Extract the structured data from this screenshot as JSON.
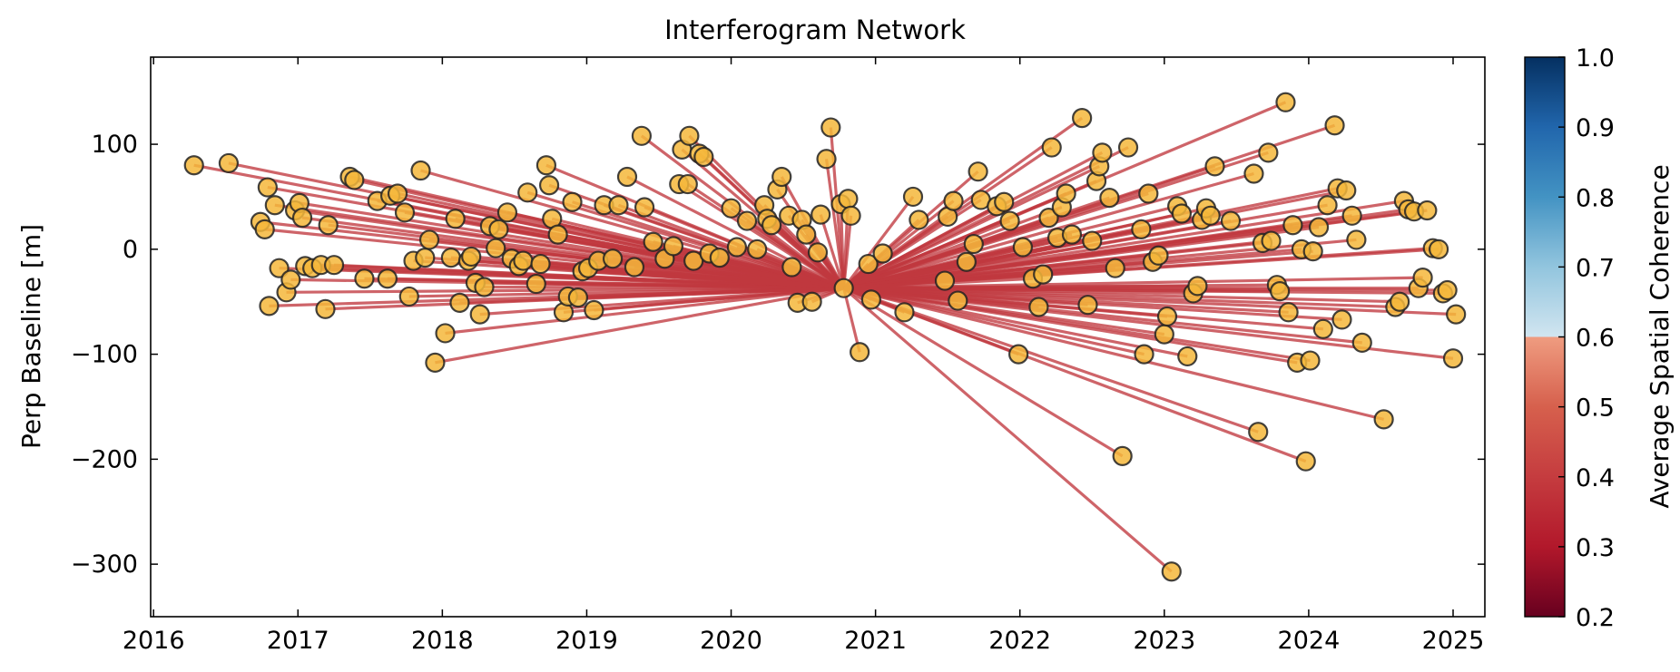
{
  "chart_data": {
    "type": "scatter",
    "title": "Interferogram Network",
    "xlabel": "",
    "ylabel": "Perp Baseline [m]",
    "xlim": [
      2015.98,
      2025.22
    ],
    "ylim": [
      -350,
      183
    ],
    "x_ticks": [
      "2016",
      "2017",
      "2018",
      "2019",
      "2020",
      "2021",
      "2022",
      "2023",
      "2024",
      "2025"
    ],
    "y_ticks": [
      "100",
      "0",
      "−100",
      "−200",
      "−300"
    ],
    "y_tick_values": [
      100,
      0,
      -100,
      -200,
      -300
    ],
    "reference": {
      "date": 2020.78,
      "baseline": -37
    },
    "edges": "each acquisition connected to the reference acquisition",
    "marker_color": "#f5b73b",
    "line_color": "#c0393f",
    "grid": false,
    "colorbar": {
      "label": "Average Spatial Coherence",
      "min": 0.2,
      "max": 1.0,
      "ticks": [
        "0.2",
        "0.3",
        "0.4",
        "0.5",
        "0.6",
        "0.7",
        "0.8",
        "0.9",
        "1.0"
      ],
      "colormap": "RdBu",
      "threshold": 0.7
    },
    "points": [
      {
        "x": 2016.28,
        "y": 80
      },
      {
        "x": 2016.52,
        "y": 82
      },
      {
        "x": 2016.74,
        "y": 26
      },
      {
        "x": 2016.77,
        "y": 19
      },
      {
        "x": 2016.79,
        "y": 59
      },
      {
        "x": 2016.8,
        "y": -54
      },
      {
        "x": 2016.84,
        "y": 42
      },
      {
        "x": 2016.87,
        "y": -18
      },
      {
        "x": 2016.92,
        "y": -41
      },
      {
        "x": 2016.95,
        "y": -29
      },
      {
        "x": 2016.98,
        "y": 37
      },
      {
        "x": 2017.01,
        "y": 44
      },
      {
        "x": 2017.03,
        "y": 30
      },
      {
        "x": 2017.05,
        "y": -16
      },
      {
        "x": 2017.1,
        "y": -18
      },
      {
        "x": 2017.16,
        "y": -15
      },
      {
        "x": 2017.19,
        "y": -57
      },
      {
        "x": 2017.21,
        "y": 23
      },
      {
        "x": 2017.25,
        "y": -15
      },
      {
        "x": 2017.36,
        "y": 69
      },
      {
        "x": 2017.39,
        "y": 66
      },
      {
        "x": 2017.46,
        "y": -28
      },
      {
        "x": 2017.55,
        "y": 46
      },
      {
        "x": 2017.62,
        "y": -28
      },
      {
        "x": 2017.64,
        "y": 51
      },
      {
        "x": 2017.69,
        "y": 53
      },
      {
        "x": 2017.74,
        "y": 35
      },
      {
        "x": 2017.77,
        "y": -45
      },
      {
        "x": 2017.8,
        "y": -11
      },
      {
        "x": 2017.85,
        "y": 75
      },
      {
        "x": 2017.88,
        "y": -8
      },
      {
        "x": 2017.91,
        "y": 9
      },
      {
        "x": 2017.95,
        "y": -108
      },
      {
        "x": 2018.02,
        "y": -80
      },
      {
        "x": 2018.06,
        "y": -8
      },
      {
        "x": 2018.09,
        "y": 29
      },
      {
        "x": 2018.12,
        "y": -51
      },
      {
        "x": 2018.18,
        "y": -11
      },
      {
        "x": 2018.2,
        "y": -7
      },
      {
        "x": 2018.23,
        "y": -32
      },
      {
        "x": 2018.26,
        "y": -62
      },
      {
        "x": 2018.29,
        "y": -36
      },
      {
        "x": 2018.33,
        "y": 22
      },
      {
        "x": 2018.37,
        "y": 1
      },
      {
        "x": 2018.39,
        "y": 19
      },
      {
        "x": 2018.45,
        "y": 35
      },
      {
        "x": 2018.48,
        "y": -9
      },
      {
        "x": 2018.53,
        "y": -16
      },
      {
        "x": 2018.56,
        "y": -11
      },
      {
        "x": 2018.59,
        "y": 54
      },
      {
        "x": 2018.65,
        "y": -33
      },
      {
        "x": 2018.68,
        "y": -14
      },
      {
        "x": 2018.72,
        "y": 80
      },
      {
        "x": 2018.74,
        "y": 61
      },
      {
        "x": 2018.76,
        "y": 29
      },
      {
        "x": 2018.8,
        "y": 14
      },
      {
        "x": 2018.84,
        "y": -60
      },
      {
        "x": 2018.87,
        "y": -45
      },
      {
        "x": 2018.9,
        "y": 45
      },
      {
        "x": 2018.94,
        "y": -46
      },
      {
        "x": 2018.97,
        "y": -21
      },
      {
        "x": 2019.01,
        "y": -18
      },
      {
        "x": 2019.05,
        "y": -58
      },
      {
        "x": 2019.08,
        "y": -11
      },
      {
        "x": 2019.12,
        "y": 42
      },
      {
        "x": 2019.18,
        "y": -9
      },
      {
        "x": 2019.22,
        "y": 42
      },
      {
        "x": 2019.28,
        "y": 69
      },
      {
        "x": 2019.33,
        "y": -17
      },
      {
        "x": 2019.38,
        "y": 108
      },
      {
        "x": 2019.4,
        "y": 40
      },
      {
        "x": 2019.46,
        "y": 7
      },
      {
        "x": 2019.54,
        "y": -9
      },
      {
        "x": 2019.6,
        "y": 3
      },
      {
        "x": 2019.64,
        "y": 62
      },
      {
        "x": 2019.66,
        "y": 95
      },
      {
        "x": 2019.7,
        "y": 62
      },
      {
        "x": 2019.71,
        "y": 108
      },
      {
        "x": 2019.74,
        "y": -11
      },
      {
        "x": 2019.78,
        "y": 91
      },
      {
        "x": 2019.81,
        "y": 88
      },
      {
        "x": 2019.85,
        "y": -4
      },
      {
        "x": 2019.92,
        "y": -8
      },
      {
        "x": 2020.0,
        "y": 39
      },
      {
        "x": 2020.04,
        "y": 2
      },
      {
        "x": 2020.11,
        "y": 27
      },
      {
        "x": 2020.18,
        "y": 0
      },
      {
        "x": 2020.23,
        "y": 42
      },
      {
        "x": 2020.25,
        "y": 29
      },
      {
        "x": 2020.28,
        "y": 23
      },
      {
        "x": 2020.32,
        "y": 57
      },
      {
        "x": 2020.35,
        "y": 69
      },
      {
        "x": 2020.4,
        "y": 32
      },
      {
        "x": 2020.42,
        "y": -17
      },
      {
        "x": 2020.46,
        "y": -51
      },
      {
        "x": 2020.49,
        "y": 28
      },
      {
        "x": 2020.52,
        "y": 14
      },
      {
        "x": 2020.56,
        "y": -50
      },
      {
        "x": 2020.6,
        "y": -3
      },
      {
        "x": 2020.62,
        "y": 33
      },
      {
        "x": 2020.66,
        "y": 86
      },
      {
        "x": 2020.69,
        "y": 116
      },
      {
        "x": 2020.76,
        "y": 43
      },
      {
        "x": 2020.78,
        "y": -37
      },
      {
        "x": 2020.81,
        "y": 48
      },
      {
        "x": 2020.83,
        "y": 32
      },
      {
        "x": 2020.89,
        "y": -98
      },
      {
        "x": 2020.95,
        "y": -14
      },
      {
        "x": 2020.97,
        "y": -48
      },
      {
        "x": 2021.05,
        "y": -4
      },
      {
        "x": 2021.2,
        "y": -60
      },
      {
        "x": 2021.26,
        "y": 50
      },
      {
        "x": 2021.3,
        "y": 28
      },
      {
        "x": 2021.48,
        "y": -30
      },
      {
        "x": 2021.5,
        "y": 31
      },
      {
        "x": 2021.54,
        "y": 46
      },
      {
        "x": 2021.57,
        "y": -49
      },
      {
        "x": 2021.63,
        "y": -12
      },
      {
        "x": 2021.68,
        "y": 5
      },
      {
        "x": 2021.71,
        "y": 74
      },
      {
        "x": 2021.73,
        "y": 47
      },
      {
        "x": 2021.84,
        "y": 41
      },
      {
        "x": 2021.89,
        "y": 45
      },
      {
        "x": 2021.93,
        "y": 27
      },
      {
        "x": 2021.99,
        "y": -100
      },
      {
        "x": 2022.02,
        "y": 2
      },
      {
        "x": 2022.09,
        "y": -28
      },
      {
        "x": 2022.13,
        "y": -55
      },
      {
        "x": 2022.16,
        "y": -24
      },
      {
        "x": 2022.2,
        "y": 30
      },
      {
        "x": 2022.22,
        "y": 97
      },
      {
        "x": 2022.26,
        "y": 11
      },
      {
        "x": 2022.29,
        "y": 40
      },
      {
        "x": 2022.32,
        "y": 53
      },
      {
        "x": 2022.36,
        "y": 14
      },
      {
        "x": 2022.43,
        "y": 125
      },
      {
        "x": 2022.47,
        "y": -53
      },
      {
        "x": 2022.5,
        "y": 8
      },
      {
        "x": 2022.53,
        "y": 65
      },
      {
        "x": 2022.55,
        "y": 79
      },
      {
        "x": 2022.57,
        "y": 92
      },
      {
        "x": 2022.62,
        "y": 49
      },
      {
        "x": 2022.66,
        "y": -18
      },
      {
        "x": 2022.71,
        "y": -197
      },
      {
        "x": 2022.75,
        "y": 97
      },
      {
        "x": 2022.84,
        "y": 19
      },
      {
        "x": 2022.86,
        "y": -100
      },
      {
        "x": 2022.89,
        "y": 53
      },
      {
        "x": 2022.92,
        "y": -12
      },
      {
        "x": 2022.96,
        "y": -6
      },
      {
        "x": 2023.0,
        "y": -81
      },
      {
        "x": 2023.02,
        "y": -64
      },
      {
        "x": 2023.05,
        "y": -307
      },
      {
        "x": 2023.09,
        "y": 41
      },
      {
        "x": 2023.12,
        "y": 34
      },
      {
        "x": 2023.16,
        "y": -102
      },
      {
        "x": 2023.2,
        "y": -42
      },
      {
        "x": 2023.23,
        "y": -35
      },
      {
        "x": 2023.26,
        "y": 28
      },
      {
        "x": 2023.29,
        "y": 39
      },
      {
        "x": 2023.32,
        "y": 32
      },
      {
        "x": 2023.35,
        "y": 79
      },
      {
        "x": 2023.46,
        "y": 27
      },
      {
        "x": 2023.62,
        "y": 72
      },
      {
        "x": 2023.65,
        "y": -174
      },
      {
        "x": 2023.68,
        "y": 6
      },
      {
        "x": 2023.72,
        "y": 92
      },
      {
        "x": 2023.74,
        "y": 8
      },
      {
        "x": 2023.78,
        "y": -34
      },
      {
        "x": 2023.8,
        "y": -40
      },
      {
        "x": 2023.84,
        "y": 140
      },
      {
        "x": 2023.86,
        "y": -60
      },
      {
        "x": 2023.89,
        "y": 23
      },
      {
        "x": 2023.92,
        "y": -108
      },
      {
        "x": 2023.95,
        "y": 0
      },
      {
        "x": 2023.98,
        "y": -202
      },
      {
        "x": 2024.01,
        "y": -106
      },
      {
        "x": 2024.03,
        "y": -2
      },
      {
        "x": 2024.07,
        "y": 21
      },
      {
        "x": 2024.1,
        "y": -76
      },
      {
        "x": 2024.13,
        "y": 42
      },
      {
        "x": 2024.18,
        "y": 118
      },
      {
        "x": 2024.2,
        "y": 58
      },
      {
        "x": 2024.23,
        "y": -67
      },
      {
        "x": 2024.26,
        "y": 56
      },
      {
        "x": 2024.3,
        "y": 32
      },
      {
        "x": 2024.33,
        "y": 9
      },
      {
        "x": 2024.37,
        "y": -89
      },
      {
        "x": 2024.52,
        "y": -162
      },
      {
        "x": 2024.6,
        "y": -55
      },
      {
        "x": 2024.63,
        "y": -50
      },
      {
        "x": 2024.66,
        "y": 46
      },
      {
        "x": 2024.69,
        "y": 38
      },
      {
        "x": 2024.73,
        "y": 36
      },
      {
        "x": 2024.76,
        "y": -37
      },
      {
        "x": 2024.79,
        "y": -27
      },
      {
        "x": 2024.82,
        "y": 37
      },
      {
        "x": 2024.86,
        "y": 1
      },
      {
        "x": 2024.9,
        "y": 0
      },
      {
        "x": 2024.93,
        "y": -42
      },
      {
        "x": 2024.96,
        "y": -39
      },
      {
        "x": 2025.0,
        "y": -104
      },
      {
        "x": 2025.02,
        "y": -62
      }
    ]
  }
}
